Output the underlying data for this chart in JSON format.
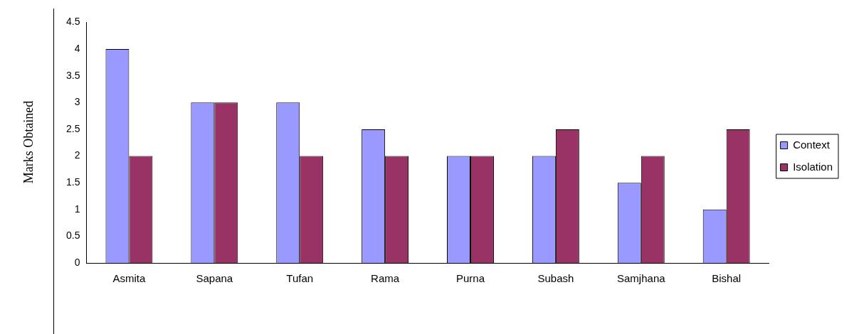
{
  "chart_data": {
    "type": "bar",
    "ylabel": "Marks Obtained",
    "categories": [
      "Asmita",
      "Sapana",
      "Tufan",
      "Rama",
      "Purna",
      "Subash",
      "Samjhana",
      "Bishal"
    ],
    "series": [
      {
        "name": "Context",
        "color": "#9999ff",
        "values": [
          4,
          3,
          3,
          2.5,
          2,
          2,
          1.5,
          1
        ]
      },
      {
        "name": "Isolation",
        "color": "#993366",
        "values": [
          2,
          3,
          2,
          2,
          2,
          2.5,
          2,
          2.5
        ]
      }
    ],
    "ylim": [
      0,
      4.5
    ],
    "yticks": [
      0,
      0.5,
      1,
      1.5,
      2,
      2.5,
      3,
      3.5,
      4,
      4.5
    ],
    "grid": false,
    "legend": "right"
  }
}
